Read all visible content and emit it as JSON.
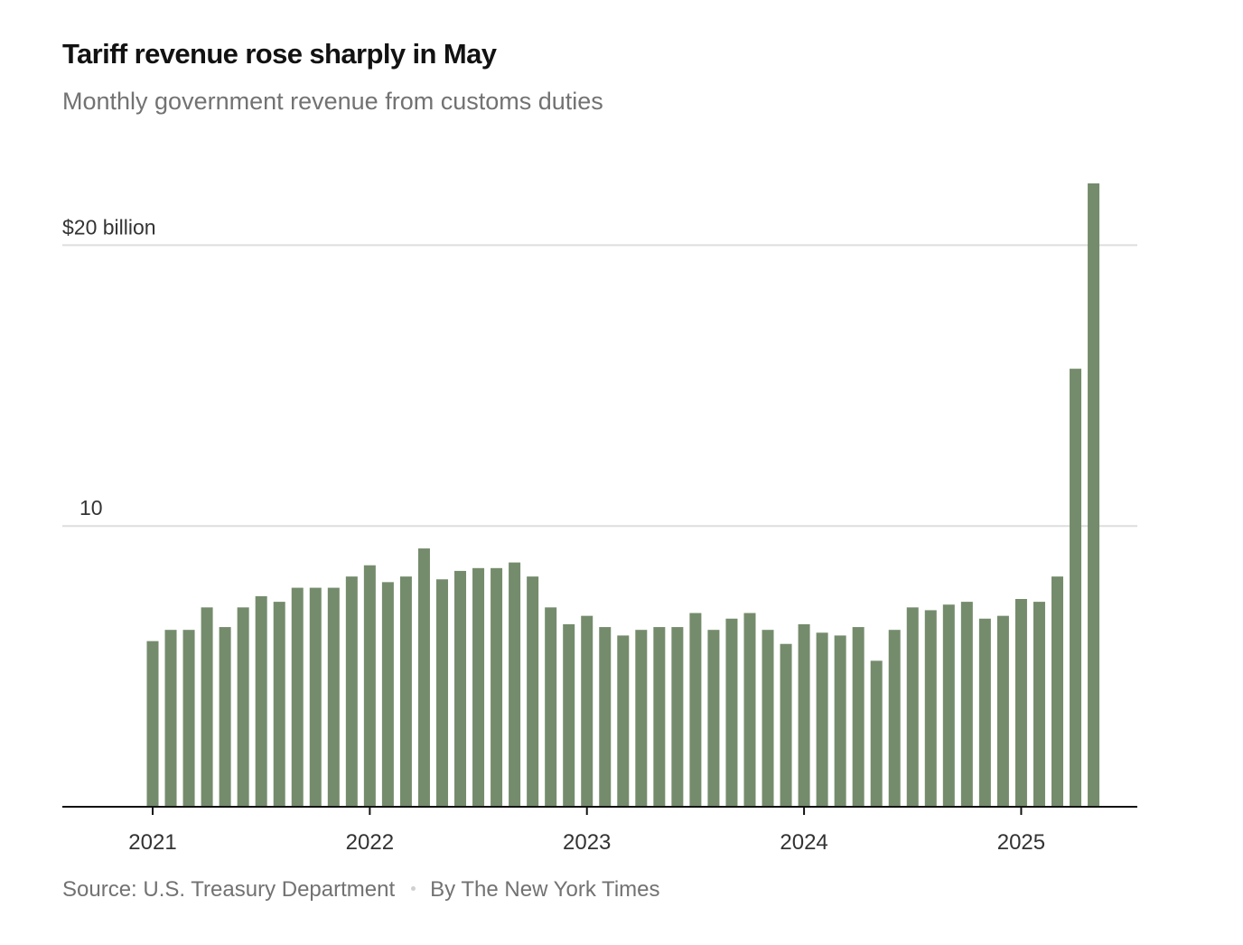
{
  "header": {
    "title": "Tariff revenue rose sharply in May",
    "subtitle": "Monthly government revenue from customs duties"
  },
  "footer": {
    "source": "Source: U.S. Treasury Department",
    "byline": "By The New York Times"
  },
  "colors": {
    "bar": "#758c6c",
    "grid": "#dedede",
    "axis": "#121212",
    "label": "#333333"
  },
  "chart_data": {
    "type": "bar",
    "title": "Tariff revenue rose sharply in May",
    "subtitle": "Monthly government revenue from customs duties",
    "xlabel": "",
    "ylabel": "",
    "unit": "billion dollars",
    "ylim": [
      0,
      22.2
    ],
    "yticks": [
      {
        "value": 10,
        "label": "10"
      },
      {
        "value": 20,
        "label": "$20 billion"
      }
    ],
    "xticks": [
      {
        "category": "2021-01",
        "label": "2021"
      },
      {
        "category": "2022-01",
        "label": "2022"
      },
      {
        "category": "2023-01",
        "label": "2023"
      },
      {
        "category": "2024-01",
        "label": "2024"
      },
      {
        "category": "2025-01",
        "label": "2025"
      }
    ],
    "grid": true,
    "legend": "none",
    "categories": [
      "2021-01",
      "2021-02",
      "2021-03",
      "2021-04",
      "2021-05",
      "2021-06",
      "2021-07",
      "2021-08",
      "2021-09",
      "2021-10",
      "2021-11",
      "2021-12",
      "2022-01",
      "2022-02",
      "2022-03",
      "2022-04",
      "2022-05",
      "2022-06",
      "2022-07",
      "2022-08",
      "2022-09",
      "2022-10",
      "2022-11",
      "2022-12",
      "2023-01",
      "2023-02",
      "2023-03",
      "2023-04",
      "2023-05",
      "2023-06",
      "2023-07",
      "2023-08",
      "2023-09",
      "2023-10",
      "2023-11",
      "2023-12",
      "2024-01",
      "2024-02",
      "2024-03",
      "2024-04",
      "2024-05",
      "2024-06",
      "2024-07",
      "2024-08",
      "2024-09",
      "2024-10",
      "2024-11",
      "2024-12",
      "2025-01",
      "2025-02",
      "2025-03",
      "2025-04",
      "2025-05"
    ],
    "values": [
      5.9,
      6.3,
      6.3,
      7.1,
      6.4,
      7.1,
      7.5,
      7.3,
      7.8,
      7.8,
      7.8,
      8.2,
      8.6,
      8.0,
      8.2,
      9.2,
      8.1,
      8.4,
      8.5,
      8.5,
      8.7,
      8.2,
      7.1,
      6.5,
      6.8,
      6.4,
      6.1,
      6.3,
      6.4,
      6.4,
      6.9,
      6.3,
      6.7,
      6.9,
      6.3,
      5.8,
      6.5,
      6.2,
      6.1,
      6.4,
      5.2,
      6.3,
      7.1,
      7.0,
      7.2,
      7.3,
      6.7,
      6.8,
      7.4,
      7.3,
      8.2,
      15.6,
      22.2
    ]
  }
}
